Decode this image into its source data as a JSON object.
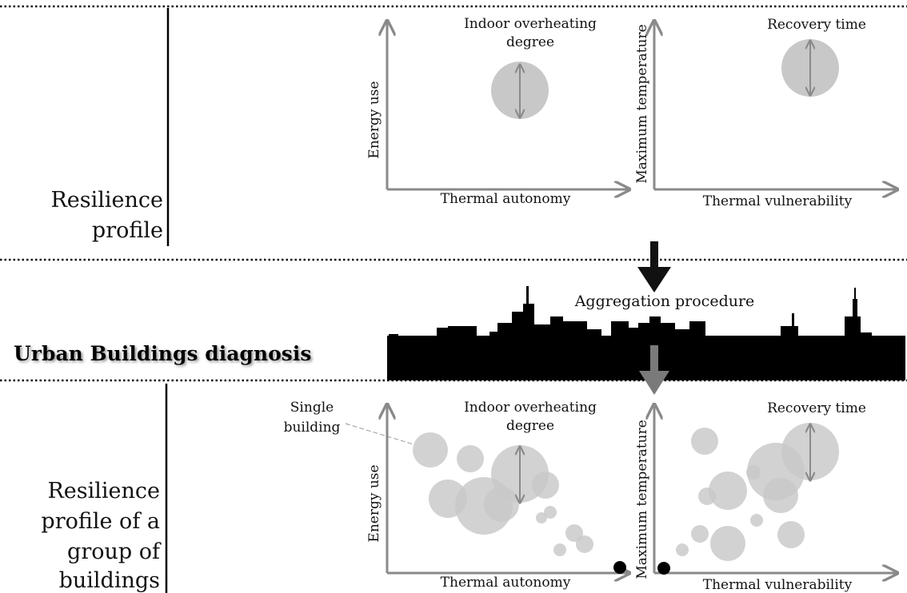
{
  "top_section": {
    "label_line1": "Resilience",
    "label_line2": "profile",
    "chart_left": {
      "x_label": "Thermal autonomy",
      "y_label": "Energy use",
      "bubble_label_line1": "Indoor overheating",
      "bubble_label_line2": "degree"
    },
    "chart_right": {
      "x_label": "Thermal vulnerability",
      "y_label": "Maximum temperature",
      "bubble_label": "Recovery time"
    }
  },
  "middle_section": {
    "title": "Urban Buildings diagnosis",
    "procedure_label": "Aggregation procedure"
  },
  "bottom_section": {
    "label_lines": [
      "Resilience",
      "profile of a",
      "group of",
      "buildings"
    ],
    "callout_line1": "Single",
    "callout_line2": "building",
    "chart_left": {
      "x_label": "Thermal autonomy",
      "y_label": "Energy use",
      "bubble_label_line1": "Indoor overheating",
      "bubble_label_line2": "degree"
    },
    "chart_right": {
      "x_label": "Thermal vulnerability",
      "y_label": "Maximum temperature",
      "bubble_label": "Recovery time"
    }
  },
  "colors": {
    "bubble": "#c8c8c8",
    "axis": "#8a8a8a",
    "skyline": "#000000",
    "black_arrow": "#111111",
    "gray_arrow": "#7a7a7a"
  }
}
